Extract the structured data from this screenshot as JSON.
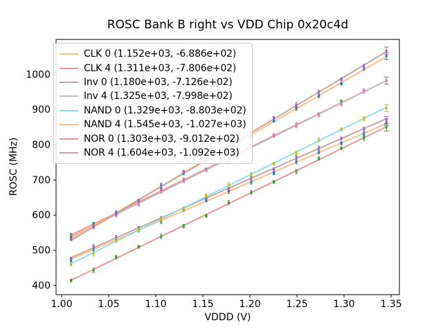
{
  "chart_data": {
    "type": "scatter",
    "has_fit_lines": true,
    "title": "ROSC Bank B right vs VDD Chip 0x20c4d",
    "xlabel": "VDDD (V)",
    "ylabel": "ROSC (MHz)",
    "xlim": [
      0.9941,
      1.3588
    ],
    "ylim": [
      374,
      1100
    ],
    "xticks": [
      1.0,
      1.05,
      1.1,
      1.15,
      1.2,
      1.25,
      1.3,
      1.35
    ],
    "xtick_labels": [
      "1.00",
      "1.05",
      "1.10",
      "1.15",
      "1.20",
      "1.25",
      "1.30",
      "1.35"
    ],
    "yticks": [
      400,
      500,
      600,
      700,
      800,
      900,
      1000
    ],
    "ytick_labels": [
      "400",
      "500",
      "600",
      "700",
      "800",
      "900",
      "1000"
    ],
    "x": [
      1.01,
      1.0339,
      1.0579,
      1.0818,
      1.1057,
      1.1296,
      1.1536,
      1.1775,
      1.2014,
      1.2254,
      1.2493,
      1.2732,
      1.2971,
      1.3211,
      1.345
    ],
    "yerr_typical": 4,
    "yerr_last": 10,
    "grid": false,
    "legend_position": "upper left",
    "series": [
      {
        "name": "CLK 0",
        "label": "CLK 0 (1.152e+03, -6.886e+02)",
        "slope": 1152.0,
        "intercept": -688.6,
        "line_color": "#ffbe86",
        "marker_color": "#1f77b4"
      },
      {
        "name": "CLK 4",
        "label": "CLK 4 (1.311e+03, -7.806e+02)",
        "slope": 1311.0,
        "intercept": -780.6,
        "line_color": "#eb9495",
        "marker_color": "#2ca02c"
      },
      {
        "name": "Inv 0",
        "label": "Inv 0 (1.180e+03, -7.126e+02)",
        "slope": 1180.0,
        "intercept": -712.6,
        "line_color": "#c4a49e",
        "marker_color": "#9467bd"
      },
      {
        "name": "Inv 4",
        "label": "Inv 4 (1.325e+03, -7.998e+02)",
        "slope": 1325.0,
        "intercept": -799.8,
        "line_color": "#c1c1c1",
        "marker_color": "#e377c2"
      },
      {
        "name": "NAND 0",
        "label": "NAND 0 (1.329e+03, -8.803e+02)",
        "slope": 1329.0,
        "intercept": -880.3,
        "line_color": "#8fdfe8",
        "marker_color": "#bcbd22"
      },
      {
        "name": "NAND 4",
        "label": "NAND 4 (1.545e+03, -1.027e+03)",
        "slope": 1545.0,
        "intercept": -1027.0,
        "line_color": "#ffbe86",
        "marker_color": "#1f77b4"
      },
      {
        "name": "NOR 0",
        "label": "NOR 0 (1.303e+03, -9.012e+02)",
        "slope": 1303.0,
        "intercept": -901.2,
        "line_color": "#eb9495",
        "marker_color": "#2ca02c"
      },
      {
        "name": "NOR 4",
        "label": "NOR 4 (1.604e+03, -1.092e+03)",
        "slope": 1604.0,
        "intercept": -1092.0,
        "line_color": "#c4a49e",
        "marker_color": "#9467bd"
      }
    ]
  }
}
